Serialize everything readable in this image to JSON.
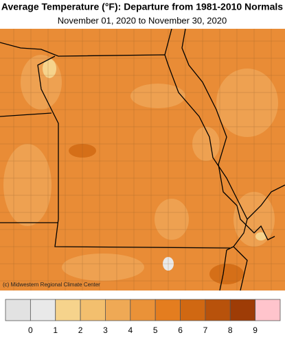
{
  "header": {
    "title": "Average Temperature (°F): Departure from 1981-2010 Normals",
    "subtitle": "November 01, 2020 to November 30, 2020"
  },
  "map": {
    "credit": "(c) Midwestern Regional Climate Center"
  },
  "legend": {
    "colors": [
      "#e2e2e2",
      "#e9e9e9",
      "#f6d38c",
      "#f3bf6e",
      "#efa955",
      "#ea9238",
      "#e47d1f",
      "#d06812",
      "#b8520b",
      "#9e3c06",
      "#ffc4cc"
    ],
    "labels": [
      0,
      1,
      2,
      3,
      4,
      5,
      6,
      7,
      8,
      9
    ]
  }
}
